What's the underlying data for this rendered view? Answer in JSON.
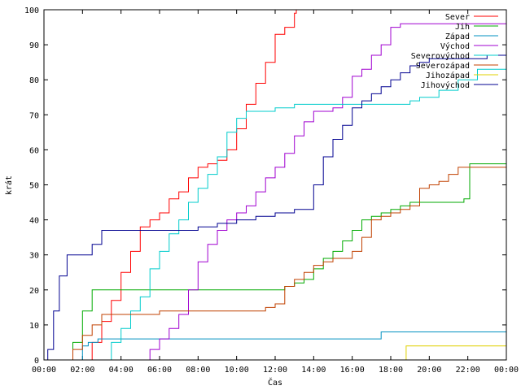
{
  "chart_data": {
    "type": "line",
    "title": "",
    "xlabel": "Čas",
    "ylabel": "krát",
    "xlim": [
      0,
      24
    ],
    "ylim": [
      0,
      100
    ],
    "xticks": [
      {
        "v": 0,
        "label": "00:00"
      },
      {
        "v": 2,
        "label": "02:00"
      },
      {
        "v": 4,
        "label": "04:00"
      },
      {
        "v": 6,
        "label": "06:00"
      },
      {
        "v": 8,
        "label": "08:00"
      },
      {
        "v": 10,
        "label": "10:00"
      },
      {
        "v": 12,
        "label": "12:00"
      },
      {
        "v": 14,
        "label": "14:00"
      },
      {
        "v": 16,
        "label": "16:00"
      },
      {
        "v": 18,
        "label": "18:00"
      },
      {
        "v": 20,
        "label": "20:00"
      },
      {
        "v": 22,
        "label": "22:00"
      },
      {
        "v": 24,
        "label": "00:00"
      }
    ],
    "yticks": [
      0,
      10,
      20,
      30,
      40,
      50,
      60,
      70,
      80,
      90,
      100
    ],
    "grid": false,
    "legend_position": "top-right",
    "series": [
      {
        "name": "Sever",
        "color": "#ff0000",
        "x": [
          0.0,
          2.0,
          2.5,
          3.0,
          3.5,
          4.0,
          4.5,
          5.0,
          5.5,
          6.0,
          6.5,
          7.0,
          7.5,
          8.0,
          8.5,
          9.0,
          9.5,
          10.0,
          10.5,
          11.0,
          11.5,
          12.0,
          12.5,
          13.0,
          13.1
        ],
        "y": [
          0.0,
          0.0,
          5.0,
          11.0,
          17.0,
          25.0,
          31.0,
          38.0,
          40.0,
          42.0,
          46.0,
          48.0,
          52.0,
          55.0,
          56.0,
          57.0,
          60.0,
          66.0,
          73.0,
          79.0,
          85.0,
          93.0,
          95.0,
          99.0,
          100.0
        ]
      },
      {
        "name": "Jih",
        "color": "#00aa00",
        "x": [
          0.0,
          1.2,
          1.5,
          2.0,
          2.5,
          3.0,
          12.0,
          12.5,
          13.0,
          13.5,
          14.0,
          14.5,
          15.0,
          15.5,
          16.0,
          16.5,
          17.0,
          17.5,
          18.0,
          18.5,
          19.0,
          20.0,
          21.0,
          21.8,
          22.1,
          24.0
        ],
        "y": [
          0.0,
          0.0,
          5.0,
          14.0,
          20.0,
          20.0,
          20.0,
          21.0,
          22.0,
          23.0,
          26.0,
          29.0,
          31.0,
          34.0,
          37.0,
          40.0,
          41.0,
          42.0,
          43.0,
          44.0,
          45.0,
          45.0,
          45.0,
          46.0,
          56.0,
          56.0
        ]
      },
      {
        "name": "Západ",
        "color": "#0090c0",
        "x": [
          0.0,
          1.3,
          2.0,
          2.3,
          2.8,
          17.4,
          17.5,
          24.0
        ],
        "y": [
          0.0,
          0.0,
          4.0,
          5.0,
          6.0,
          6.0,
          8.0,
          8.0
        ]
      },
      {
        "name": "Východ",
        "color": "#a000d0",
        "x": [
          0.0,
          5.0,
          5.5,
          6.0,
          6.5,
          7.0,
          7.5,
          8.0,
          8.5,
          9.0,
          9.5,
          10.0,
          10.5,
          11.0,
          11.5,
          12.0,
          12.5,
          13.0,
          13.5,
          14.0,
          14.5,
          15.0,
          15.5,
          16.0,
          16.5,
          17.0,
          17.5,
          18.0,
          18.5,
          24.0
        ],
        "y": [
          0.0,
          0.0,
          3.0,
          6.0,
          9.0,
          13.0,
          20.0,
          28.0,
          33.0,
          37.0,
          40.0,
          42.0,
          44.0,
          48.0,
          52.0,
          55.0,
          59.0,
          64.0,
          68.0,
          71.0,
          71.0,
          72.0,
          75.0,
          81.0,
          83.0,
          87.0,
          90.0,
          95.0,
          96.0,
          96.0
        ]
      },
      {
        "name": "Severovýchod",
        "color": "#00cccc",
        "x": [
          0.0,
          3.0,
          3.5,
          4.0,
          4.5,
          5.0,
          5.5,
          6.0,
          6.5,
          7.0,
          7.5,
          8.0,
          8.5,
          9.0,
          9.5,
          10.0,
          10.5,
          11.0,
          11.5,
          12.0,
          13.0,
          14.0,
          15.0,
          16.0,
          17.0,
          18.0,
          19.0,
          19.5,
          20.5,
          21.5,
          22.5,
          24.0
        ],
        "y": [
          0.0,
          0.0,
          5.0,
          9.0,
          14.0,
          18.0,
          26.0,
          31.0,
          36.0,
          40.0,
          45.0,
          49.0,
          53.0,
          58.0,
          65.0,
          69.0,
          71.0,
          71.0,
          71.0,
          72.0,
          73.0,
          73.0,
          73.0,
          73.0,
          73.0,
          73.0,
          74.0,
          75.0,
          77.0,
          80.0,
          83.0,
          85.0
        ]
      },
      {
        "name": "Severozápad",
        "color": "#c04000",
        "x": [
          0.0,
          1.2,
          1.5,
          2.0,
          2.5,
          3.0,
          4.0,
          5.0,
          6.0,
          7.0,
          8.0,
          9.0,
          10.0,
          11.0,
          11.5,
          12.0,
          12.5,
          13.0,
          13.5,
          14.0,
          14.5,
          15.0,
          15.5,
          16.0,
          16.5,
          17.0,
          17.5,
          18.0,
          18.5,
          19.0,
          19.5,
          20.0,
          20.5,
          21.0,
          21.5,
          22.0,
          24.0
        ],
        "y": [
          0.0,
          0.0,
          3.0,
          7.0,
          10.0,
          13.0,
          13.0,
          13.0,
          14.0,
          14.0,
          14.0,
          14.0,
          14.0,
          14.0,
          15.0,
          16.0,
          21.0,
          23.0,
          25.0,
          27.0,
          28.0,
          29.0,
          29.0,
          31.0,
          35.0,
          40.0,
          41.0,
          42.0,
          43.0,
          44.0,
          49.0,
          50.0,
          51.0,
          53.0,
          55.0,
          55.0,
          55.0
        ]
      },
      {
        "name": "Jihozápad",
        "color": "#e0d000",
        "x": [
          0.0,
          18.6,
          18.8,
          24.0
        ],
        "y": [
          0.0,
          0.0,
          4.0,
          4.0
        ]
      },
      {
        "name": "Jihovýchod",
        "color": "#000090",
        "x": [
          0.0,
          0.2,
          0.5,
          0.8,
          1.2,
          2.0,
          2.5,
          3.0,
          4.0,
          5.0,
          6.0,
          7.0,
          8.0,
          9.0,
          10.0,
          11.0,
          12.0,
          13.0,
          13.5,
          14.0,
          14.5,
          15.0,
          15.5,
          16.0,
          16.5,
          17.0,
          17.5,
          18.0,
          18.5,
          19.0,
          19.5,
          20.0,
          22.0,
          22.5,
          23.0,
          24.0
        ],
        "y": [
          0.0,
          3.0,
          14.0,
          24.0,
          30.0,
          30.0,
          33.0,
          37.0,
          37.0,
          37.0,
          37.0,
          37.0,
          38.0,
          39.0,
          40.0,
          41.0,
          42.0,
          43.0,
          43.0,
          50.0,
          58.0,
          63.0,
          67.0,
          72.0,
          74.0,
          76.0,
          78.0,
          80.0,
          82.0,
          84.0,
          85.0,
          86.0,
          86.0,
          86.0,
          87.0,
          87.0
        ]
      }
    ]
  }
}
